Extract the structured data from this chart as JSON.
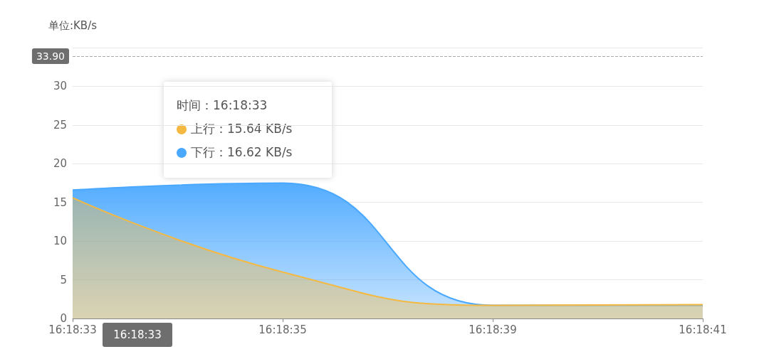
{
  "chart_data": {
    "type": "area",
    "ylabel": "单位:KB/s",
    "categories": [
      "16:18:33",
      "16:18:35",
      "16:18:39",
      "16:18:41"
    ],
    "series": [
      {
        "name": "下行",
        "color": "#4aa8ff",
        "values": [
          16.6,
          17.5,
          1.7,
          1.7
        ]
      },
      {
        "name": "上行",
        "color": "#f5b942",
        "values": [
          15.6,
          6.0,
          1.7,
          1.8
        ]
      }
    ],
    "ylim": [
      0,
      35
    ],
    "yticks": [
      0,
      5,
      10,
      15,
      20,
      25,
      30,
      {
        "value": 35,
        "label": null
      }
    ],
    "grid": "y",
    "legend": "top left",
    "marker": "none",
    "line_style": "solid",
    "ref_lines": [
      {
        "axis": "y",
        "value": 33.9,
        "label": "33.90",
        "color": "#aaaaaa",
        "line_style": "dashed"
      }
    ],
    "annotations": [
      "时间：16:18:33",
      "：15.64 KB/s",
      "：16.62 KB/s",
      "16:18:33"
    ]
  }
}
